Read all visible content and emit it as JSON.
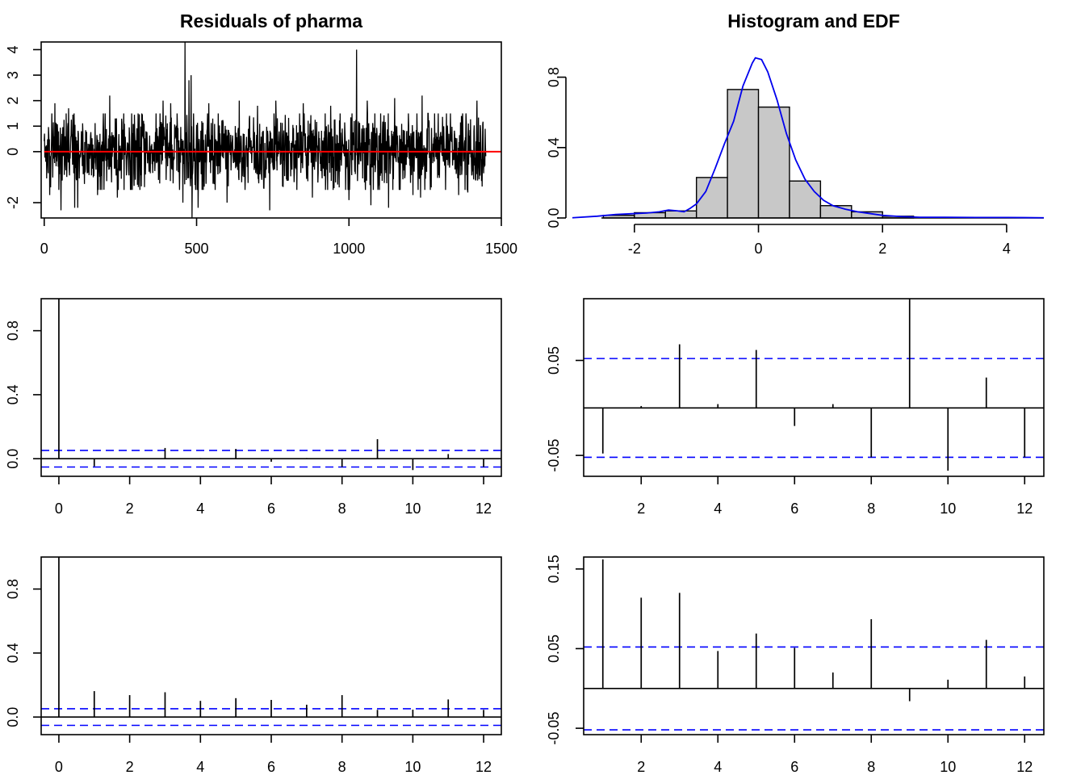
{
  "figure": {
    "colors": {
      "axis": "#000000",
      "zero_line": "#ff0000",
      "density": "#0000ee",
      "ci": "#0000ff",
      "bar_fill": "#c8c8c8"
    }
  },
  "chart_data": [
    {
      "id": "residuals",
      "type": "line",
      "title": "Residuals of pharma",
      "xlim": [
        -10,
        1500
      ],
      "ylim": [
        -2.6,
        4.3
      ],
      "x_ticks": [
        "0",
        "500",
        "1000",
        "1500"
      ],
      "y_ticks": [
        "-2",
        "0",
        "1",
        "2",
        "3",
        "4"
      ],
      "n": 1450,
      "reference_line": 0,
      "notable_spikes": [
        {
          "x": 18,
          "y": -1.7
        },
        {
          "x": 35,
          "y": 1.9
        },
        {
          "x": 55,
          "y": -2.3
        },
        {
          "x": 80,
          "y": 1.7
        },
        {
          "x": 100,
          "y": -2.2
        },
        {
          "x": 110,
          "y": -2.2
        },
        {
          "x": 175,
          "y": -1.7
        },
        {
          "x": 215,
          "y": 2.2
        },
        {
          "x": 240,
          "y": -1.8
        },
        {
          "x": 320,
          "y": 1.5
        },
        {
          "x": 390,
          "y": 2.0
        },
        {
          "x": 415,
          "y": 1.9
        },
        {
          "x": 455,
          "y": -2.0
        },
        {
          "x": 462,
          "y": 4.3
        },
        {
          "x": 475,
          "y": 2.8
        },
        {
          "x": 482,
          "y": 3.0
        },
        {
          "x": 485,
          "y": -2.6
        },
        {
          "x": 505,
          "y": -2.2
        },
        {
          "x": 540,
          "y": 1.9
        },
        {
          "x": 600,
          "y": -2.0
        },
        {
          "x": 640,
          "y": 2.0
        },
        {
          "x": 700,
          "y": 1.8
        },
        {
          "x": 740,
          "y": -2.3
        },
        {
          "x": 760,
          "y": 2.0
        },
        {
          "x": 850,
          "y": 1.9
        },
        {
          "x": 880,
          "y": -1.8
        },
        {
          "x": 940,
          "y": 1.8
        },
        {
          "x": 1000,
          "y": -1.9
        },
        {
          "x": 1025,
          "y": 4.0
        },
        {
          "x": 1060,
          "y": 2.0
        },
        {
          "x": 1072,
          "y": -2.1
        },
        {
          "x": 1085,
          "y": 1.5
        },
        {
          "x": 1130,
          "y": -2.2
        },
        {
          "x": 1150,
          "y": 2.1
        },
        {
          "x": 1210,
          "y": -1.7
        },
        {
          "x": 1235,
          "y": -1.8
        },
        {
          "x": 1240,
          "y": 2.2
        },
        {
          "x": 1270,
          "y": -1.4
        },
        {
          "x": 1320,
          "y": 1.5
        },
        {
          "x": 1360,
          "y": -1.7
        },
        {
          "x": 1390,
          "y": -1.6
        },
        {
          "x": 1420,
          "y": 2.0
        }
      ]
    },
    {
      "id": "histogram",
      "type": "bar",
      "title": "Histogram and EDF",
      "xlim": [
        -3.0,
        4.6
      ],
      "ylim": [
        0,
        1.0
      ],
      "x_ticks": [
        "-2",
        "0",
        "2",
        "4"
      ],
      "y_ticks": [
        "0.0",
        "0.4",
        "0.8"
      ],
      "bins": [
        {
          "from": -2.5,
          "to": -2.0,
          "density": 0.015
        },
        {
          "from": -2.0,
          "to": -1.5,
          "density": 0.03
        },
        {
          "from": -1.5,
          "to": -1.0,
          "density": 0.04
        },
        {
          "from": -1.0,
          "to": -0.5,
          "density": 0.23
        },
        {
          "from": -0.5,
          "to": 0.0,
          "density": 0.73
        },
        {
          "from": 0.0,
          "to": 0.5,
          "density": 0.63
        },
        {
          "from": 0.5,
          "to": 1.0,
          "density": 0.21
        },
        {
          "from": 1.0,
          "to": 1.5,
          "density": 0.07
        },
        {
          "from": 1.5,
          "to": 2.0,
          "density": 0.035
        },
        {
          "from": 2.0,
          "to": 2.5,
          "density": 0.01
        }
      ],
      "density_curve": [
        [
          -3.0,
          0.001
        ],
        [
          -2.6,
          0.01
        ],
        [
          -2.3,
          0.02
        ],
        [
          -2.0,
          0.025
        ],
        [
          -1.8,
          0.028
        ],
        [
          -1.6,
          0.035
        ],
        [
          -1.45,
          0.045
        ],
        [
          -1.3,
          0.04
        ],
        [
          -1.2,
          0.035
        ],
        [
          -1.1,
          0.055
        ],
        [
          -1.0,
          0.08
        ],
        [
          -0.85,
          0.15
        ],
        [
          -0.7,
          0.28
        ],
        [
          -0.55,
          0.42
        ],
        [
          -0.4,
          0.55
        ],
        [
          -0.25,
          0.75
        ],
        [
          -0.1,
          0.88
        ],
        [
          -0.05,
          0.91
        ],
        [
          0.05,
          0.9
        ],
        [
          0.15,
          0.83
        ],
        [
          0.3,
          0.67
        ],
        [
          0.45,
          0.48
        ],
        [
          0.6,
          0.33
        ],
        [
          0.75,
          0.22
        ],
        [
          0.9,
          0.15
        ],
        [
          1.05,
          0.1
        ],
        [
          1.2,
          0.07
        ],
        [
          1.4,
          0.05
        ],
        [
          1.6,
          0.035
        ],
        [
          1.8,
          0.025
        ],
        [
          2.0,
          0.015
        ],
        [
          2.3,
          0.008
        ],
        [
          2.6,
          0.004
        ],
        [
          3.0,
          0.004
        ],
        [
          3.5,
          0.003
        ],
        [
          4.0,
          0.003
        ],
        [
          4.6,
          0.001
        ]
      ]
    },
    {
      "id": "acf",
      "type": "bar",
      "xlim": [
        -0.5,
        12.5
      ],
      "ylim": [
        -0.11,
        1.0
      ],
      "x_ticks": [
        "0",
        "2",
        "4",
        "6",
        "8",
        "10",
        "12"
      ],
      "y_ticks": [
        "0.0",
        "0.4",
        "0.8"
      ],
      "lags": [
        0,
        1,
        2,
        3,
        4,
        5,
        6,
        7,
        8,
        9,
        10,
        11,
        12
      ],
      "values": [
        1.0,
        -0.048,
        0.003,
        0.067,
        0.004,
        0.061,
        -0.019,
        0.004,
        -0.052,
        0.122,
        -0.071,
        0.029,
        -0.052
      ],
      "ci": 0.052
    },
    {
      "id": "pacf",
      "type": "bar",
      "xlim": [
        0.5,
        12.5
      ],
      "ylim": [
        -0.072,
        0.115
      ],
      "x_ticks": [
        "2",
        "4",
        "6",
        "8",
        "10",
        "12"
      ],
      "y_ticks": [
        "-0.05",
        "0.05"
      ],
      "lags": [
        1,
        2,
        3,
        4,
        5,
        6,
        7,
        8,
        9,
        10,
        11,
        12
      ],
      "values": [
        -0.048,
        0.002,
        0.067,
        0.004,
        0.061,
        -0.019,
        0.004,
        -0.052,
        0.115,
        -0.066,
        0.032,
        -0.052
      ],
      "ci": 0.052
    },
    {
      "id": "acf-squared",
      "type": "bar",
      "xlim": [
        -0.5,
        12.5
      ],
      "ylim": [
        -0.11,
        1.0
      ],
      "x_ticks": [
        "0",
        "2",
        "4",
        "6",
        "8",
        "10",
        "12"
      ],
      "y_ticks": [
        "0.0",
        "0.4",
        "0.8"
      ],
      "lags": [
        0,
        1,
        2,
        3,
        4,
        5,
        6,
        7,
        8,
        9,
        10,
        11,
        12
      ],
      "values": [
        1.0,
        0.162,
        0.137,
        0.155,
        0.101,
        0.118,
        0.107,
        0.077,
        0.137,
        0.045,
        0.046,
        0.11,
        0.045
      ],
      "ci": 0.052
    },
    {
      "id": "pacf-squared",
      "type": "bar",
      "xlim": [
        0.5,
        12.5
      ],
      "ylim": [
        -0.058,
        0.165
      ],
      "x_ticks": [
        "2",
        "4",
        "6",
        "8",
        "10",
        "12"
      ],
      "y_ticks": [
        "-0.05",
        "0.05",
        "0.15"
      ],
      "lags": [
        1,
        2,
        3,
        4,
        5,
        6,
        7,
        8,
        9,
        10,
        11,
        12
      ],
      "values": [
        0.162,
        0.114,
        0.12,
        0.047,
        0.069,
        0.051,
        0.02,
        0.087,
        -0.016,
        0.011,
        0.061,
        0.015
      ],
      "ci": 0.052
    }
  ]
}
